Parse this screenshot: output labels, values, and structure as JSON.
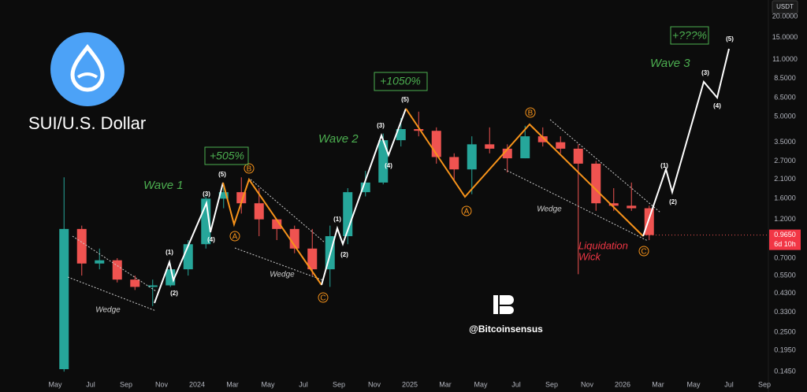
{
  "chart_data": {
    "type": "candlestick",
    "title": "SUI/U.S. Dollar",
    "currency": "USDT",
    "categories": [
      "May",
      null,
      "Jul",
      null,
      "Sep",
      null,
      "Nov",
      null,
      "2024",
      null,
      "Mar",
      null,
      "May",
      null,
      "Jul",
      null,
      "Sep",
      null,
      "Nov",
      null,
      "2025",
      null,
      "Mar",
      null,
      "May",
      null,
      "Jul",
      null,
      "Sep",
      null,
      "Nov",
      null,
      "2026",
      null,
      "Mar",
      null,
      "May",
      null,
      "Jul",
      null,
      "Sep"
    ],
    "open": [
      0.15,
      1.05,
      0.65,
      0.68,
      0.52,
      0.47,
      0.48,
      0.6,
      0.85,
      1.6,
      1.75,
      1.5,
      1.2,
      1.05,
      0.8,
      0.6,
      0.95,
      1.75,
      2.0,
      3.6,
      4.2,
      4.1,
      2.85,
      2.4,
      3.4,
      3.2,
      2.8,
      3.8,
      3.5,
      3.2,
      2.6,
      1.5,
      1.45,
      1.4,
      null,
      null,
      null,
      null,
      null,
      null,
      null
    ],
    "high": [
      2.15,
      1.1,
      0.8,
      0.7,
      0.55,
      0.52,
      0.65,
      0.9,
      1.65,
      1.95,
      2.15,
      1.85,
      1.2,
      1.1,
      1.05,
      1.1,
      1.85,
      2.35,
      3.95,
      4.9,
      5.35,
      4.3,
      3.0,
      3.8,
      4.3,
      3.4,
      4.4,
      4.3,
      3.8,
      3.4,
      2.7,
      1.85,
      2.0,
      1.45,
      null,
      null,
      null,
      null,
      null,
      null,
      null
    ],
    "low": [
      0.145,
      0.55,
      0.6,
      0.5,
      0.45,
      0.36,
      0.47,
      0.55,
      0.8,
      1.4,
      1.3,
      0.95,
      0.9,
      0.75,
      0.55,
      0.47,
      0.85,
      1.65,
      1.95,
      3.3,
      3.8,
      2.6,
      2.05,
      1.7,
      3.0,
      2.3,
      2.8,
      3.3,
      3.0,
      0.56,
      1.35,
      1.35,
      1.35,
      0.9,
      null,
      null,
      null,
      null,
      null,
      null,
      null
    ],
    "close": [
      1.05,
      0.65,
      0.68,
      0.52,
      0.47,
      0.48,
      0.6,
      0.85,
      1.6,
      1.75,
      1.5,
      1.2,
      1.05,
      0.8,
      0.6,
      0.95,
      1.75,
      2.0,
      3.6,
      4.2,
      4.1,
      2.85,
      2.4,
      3.4,
      3.2,
      2.8,
      3.8,
      3.5,
      3.2,
      2.6,
      1.5,
      1.45,
      1.4,
      0.965,
      null,
      null,
      null,
      null,
      null,
      null,
      null
    ],
    "up_color": "#26a69a",
    "down_color": "#ef5350",
    "log_scale": true,
    "grid": false,
    "ylim": [
      0.133,
      25.2
    ],
    "yticks": [
      {
        "value": 20,
        "label": "20.0000"
      },
      {
        "value": 15,
        "label": "15.0000"
      },
      {
        "value": 11,
        "label": "11.0000"
      },
      {
        "value": 8.5,
        "label": "8.5000"
      },
      {
        "value": 6.5,
        "label": "6.5000"
      },
      {
        "value": 5,
        "label": "5.0000"
      },
      {
        "value": 3.5,
        "label": "3.5000"
      },
      {
        "value": 2.7,
        "label": "2.7000"
      },
      {
        "value": 2.1,
        "label": "2.1000"
      },
      {
        "value": 1.6,
        "label": "1.6000"
      },
      {
        "value": 1.2,
        "label": "1.2000"
      },
      {
        "value": 0.7,
        "label": "0.7000"
      },
      {
        "value": 0.55,
        "label": "0.5500"
      },
      {
        "value": 0.43,
        "label": "0.4300"
      },
      {
        "value": 0.33,
        "label": "0.3300"
      },
      {
        "value": 0.25,
        "label": "0.2500"
      },
      {
        "value": 0.195,
        "label": "0.1950"
      },
      {
        "value": 0.145,
        "label": "0.1450"
      }
    ],
    "last_price": {
      "value": 0.965,
      "label": "0.9650"
    },
    "countdown": "6d 10h",
    "annotations": {
      "waves": [
        "Wave 1",
        "Wave 2",
        "Wave 3"
      ],
      "gains": [
        "+505%",
        "+1050%",
        "+???%"
      ],
      "counts": [
        "(1)",
        "(2)",
        "(3)",
        "(4)",
        "(5)"
      ],
      "corrections": [
        "A",
        "B",
        "C"
      ],
      "wedge": "Wedge",
      "liquidation": [
        "Liquidation",
        "Wick"
      ],
      "watermark": "@Bitcoinsensus"
    }
  }
}
